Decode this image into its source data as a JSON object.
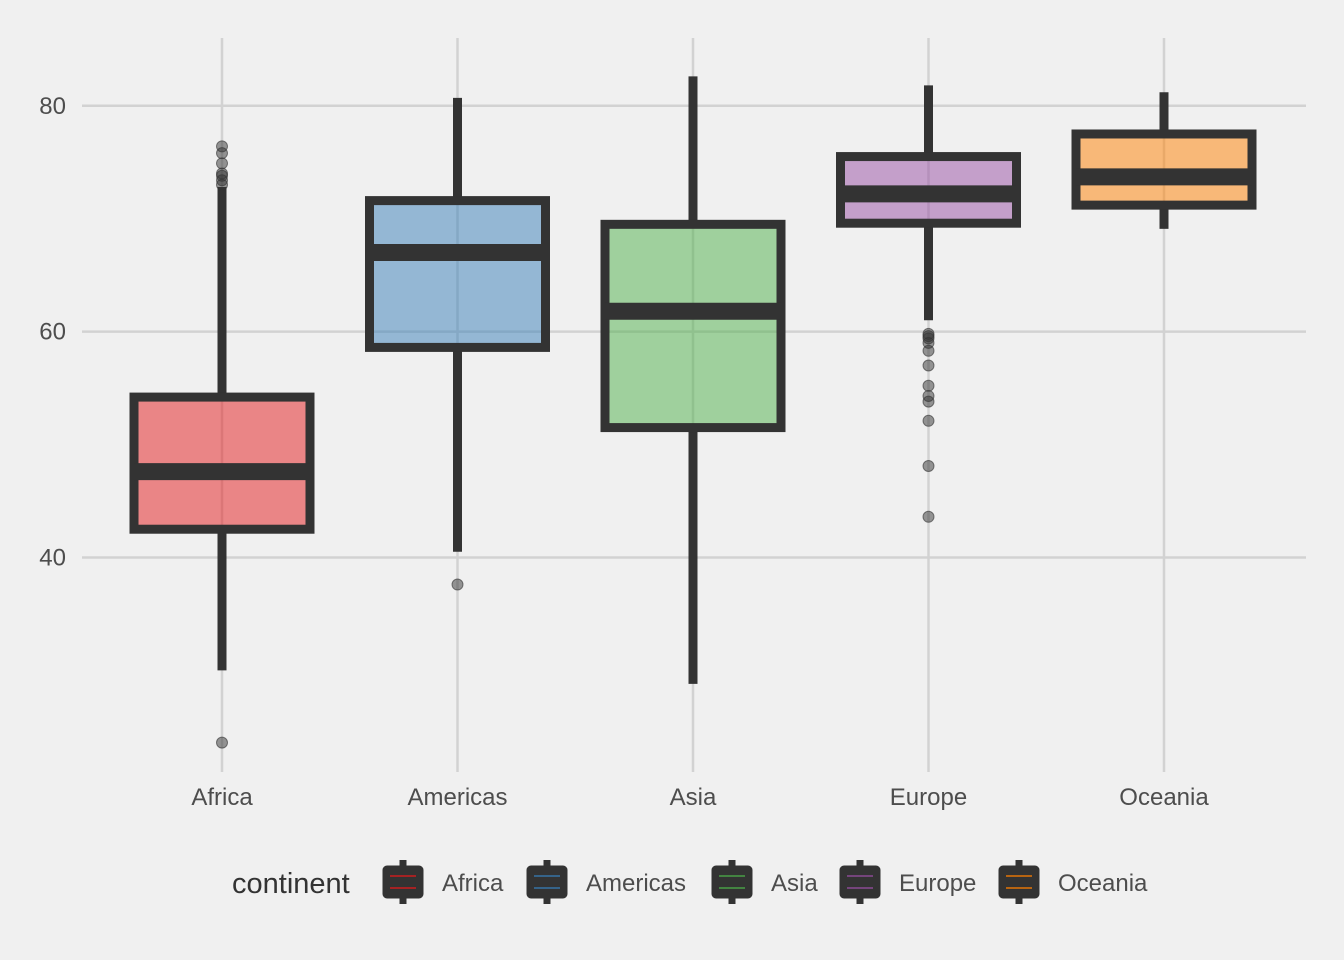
{
  "chart_data": {
    "type": "box",
    "categories": [
      "Africa",
      "Americas",
      "Asia",
      "Europe",
      "Oceania"
    ],
    "ylim": [
      21,
      86
    ],
    "yticks": [
      40,
      60,
      80
    ],
    "grid": true,
    "boxes": [
      {
        "category": "Africa",
        "color": "#E41A1C",
        "whisker_low": 30.0,
        "q1": 42.5,
        "median": 47.6,
        "q3": 54.2,
        "whisker_high": 72.8,
        "outliers": [
          23.6,
          73.0,
          73.4,
          73.8,
          74.0,
          74.9,
          75.8,
          76.4
        ]
      },
      {
        "category": "Americas",
        "color": "#377EB8",
        "whisker_low": 40.5,
        "q1": 58.6,
        "median": 67.0,
        "q3": 71.6,
        "whisker_high": 80.7,
        "outliers": [
          37.6
        ]
      },
      {
        "category": "Asia",
        "color": "#4DAF4A",
        "whisker_low": 28.8,
        "q1": 51.5,
        "median": 61.8,
        "q3": 69.5,
        "whisker_high": 82.6,
        "outliers": []
      },
      {
        "category": "Europe",
        "color": "#984EA3",
        "whisker_low": 61.0,
        "q1": 69.6,
        "median": 72.2,
        "q3": 75.5,
        "whisker_high": 81.8,
        "outliers": [
          43.6,
          48.1,
          52.1,
          53.8,
          54.3,
          55.2,
          57.0,
          58.3,
          59.0,
          59.4,
          59.6,
          59.8
        ]
      },
      {
        "category": "Oceania",
        "color": "#FF7F00",
        "whisker_low": 69.1,
        "q1": 71.2,
        "median": 73.7,
        "q3": 77.5,
        "whisker_high": 81.2,
        "outliers": []
      }
    ],
    "legend": {
      "title": "continent",
      "position": "bottom",
      "entries": [
        "Africa",
        "Americas",
        "Asia",
        "Europe",
        "Oceania"
      ]
    }
  }
}
